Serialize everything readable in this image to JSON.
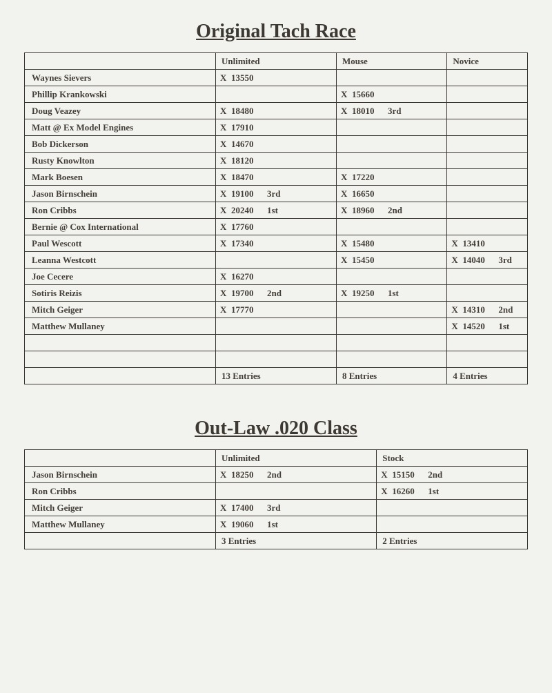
{
  "titles": {
    "t1": "Original Tach Race",
    "t2": "Out-Law .020 Class"
  },
  "t1": {
    "headers": {
      "c1": "Unlimited",
      "c2": "Mouse",
      "c3": "Novice"
    },
    "rows": [
      {
        "name": "Waynes Sievers",
        "u": "X   13550",
        "m": "",
        "n": ""
      },
      {
        "name": "Phillip Krankowski",
        "u": "",
        "m": "X   15660",
        "n": ""
      },
      {
        "name": "Doug Veazey",
        "u": "X   18480",
        "m": "X   18010   3rd",
        "n": ""
      },
      {
        "name": "Matt @ Ex Model Engines",
        "u": "X   17910",
        "m": "",
        "n": ""
      },
      {
        "name": "Bob Dickerson",
        "u": "X   14670",
        "m": "",
        "n": ""
      },
      {
        "name": "Rusty Knowlton",
        "u": "X   18120",
        "m": "",
        "n": ""
      },
      {
        "name": "Mark Boesen",
        "u": "X   18470",
        "m": "X   17220",
        "n": ""
      },
      {
        "name": "Jason Birnschein",
        "u": "X   19100   3rd",
        "m": "X   16650",
        "n": ""
      },
      {
        "name": "Ron Cribbs",
        "u": "X   20240   1st",
        "m": "X   18960   2nd",
        "n": ""
      },
      {
        "name": "Bernie @ Cox International",
        "u": "X   17760",
        "m": "",
        "n": ""
      },
      {
        "name": "Paul Wescott",
        "u": "X   17340",
        "m": "X   15480",
        "n": "X   13410"
      },
      {
        "name": "Leanna Westcott",
        "u": "",
        "m": "X   15450",
        "n": "X   14040   3rd"
      },
      {
        "name": "Joe Cecere",
        "u": "X   16270",
        "m": "",
        "n": ""
      },
      {
        "name": "Sotiris Reizis",
        "u": "X   19700   2nd",
        "m": "X   19250   1st",
        "n": ""
      },
      {
        "name": "Mitch Geiger",
        "u": "X   17770",
        "m": "",
        "n": "X   14310   2nd"
      },
      {
        "name": "Matthew Mullaney",
        "u": "",
        "m": "",
        "n": "X   14520   1st"
      },
      {
        "name": "",
        "u": "",
        "m": "",
        "n": ""
      },
      {
        "name": "",
        "u": "",
        "m": "",
        "n": ""
      }
    ],
    "footer": {
      "c1": "13 Entries",
      "c2": "8 Entries",
      "c3": "4 Entries"
    }
  },
  "t2": {
    "headers": {
      "c1": "Unlimited",
      "c2": "Stock"
    },
    "rows": [
      {
        "name": "Jason Birnschein",
        "a": "X    18250    2nd",
        "b": "X    15150    2nd"
      },
      {
        "name": "Ron Cribbs",
        "a": "",
        "b": "X    16260    1st"
      },
      {
        "name": "Mitch Geiger",
        "a": "X    17400    3rd",
        "b": ""
      },
      {
        "name": "Matthew Mullaney",
        "a": "X    19060    1st",
        "b": ""
      }
    ],
    "footer": {
      "c1": "3 Entries",
      "c2": "2 Entries"
    }
  },
  "style": {
    "background": "#f2f3ee",
    "text_color": "#443e37",
    "border_color": "#3b362f",
    "font_family": "Times New Roman",
    "title_fontsize": 28,
    "cell_fontsize": 13
  }
}
